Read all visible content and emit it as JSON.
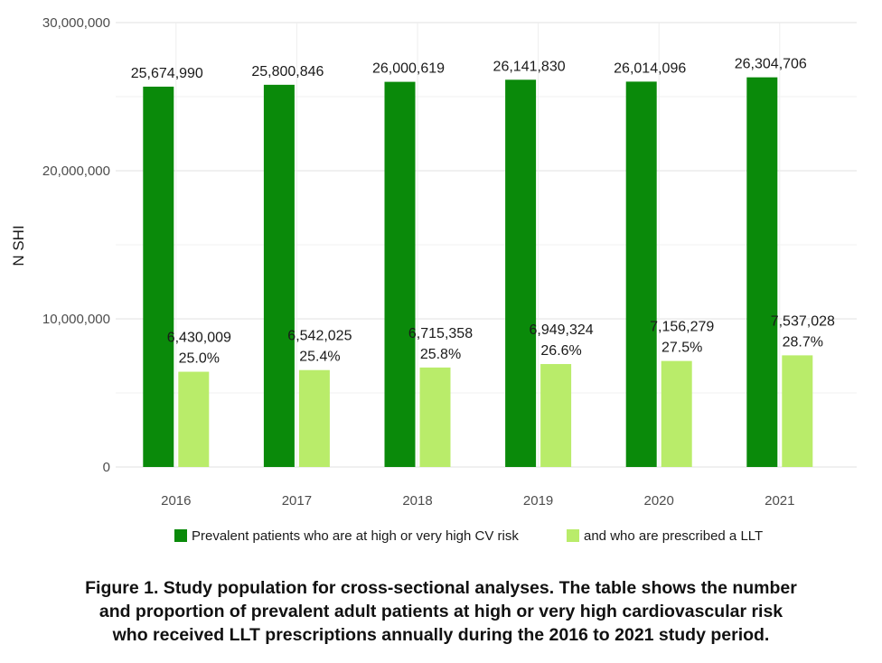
{
  "chart_data": {
    "type": "bar",
    "categories": [
      "2016",
      "2017",
      "2018",
      "2019",
      "2020",
      "2021"
    ],
    "series": [
      {
        "name": "Prevalent patients who are at high or very high CV risk",
        "values": [
          25674990,
          25800846,
          26000619,
          26141830,
          26014096,
          26304706
        ],
        "labels": [
          "25,674,990",
          "25,800,846",
          "26,000,619",
          "26,141,830",
          "26,014,096",
          "26,304,706"
        ],
        "color": "#0a8a0a"
      },
      {
        "name": "and who are prescribed a LLT",
        "values": [
          6430009,
          6542025,
          6715358,
          6949324,
          7156279,
          7537028
        ],
        "labels": [
          "6,430,009",
          "6,542,025",
          "6,715,358",
          "6,949,324",
          "7,156,279",
          "7,537,028"
        ],
        "percents": [
          "25.0%",
          "25.4%",
          "25.8%",
          "26.6%",
          "27.5%",
          "28.7%"
        ],
        "color": "#b9ec6a"
      }
    ],
    "ylabel": "N SHI",
    "xlabel": "",
    "ylim": [
      0,
      30000000
    ],
    "yticks": [
      0,
      10000000,
      20000000,
      30000000
    ],
    "ytick_labels": [
      "0",
      "10,000,000",
      "20,000,000",
      "30,000,000"
    ],
    "grid": true,
    "legend_position": "bottom"
  },
  "caption": {
    "lines": [
      "Figure 1. Study population for cross-sectional analyses. The table shows the number",
      "and proportion of prevalent adult patients at high or very high cardiovascular risk",
      "who received LLT prescriptions annually during the 2016 to 2021 study period."
    ]
  }
}
